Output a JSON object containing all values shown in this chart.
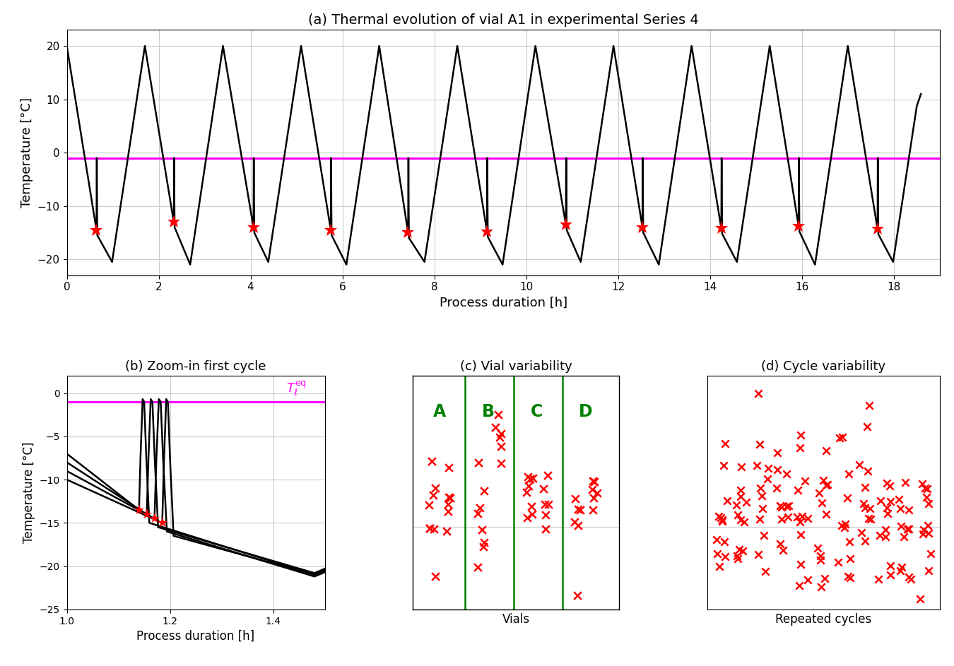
{
  "title_a": "(a) Thermal evolution of vial A1 in experimental Series 4",
  "title_b": "(b) Zoom-in first cycle",
  "title_c": "(c) Vial variability",
  "title_d": "(d) Cycle variability",
  "xlabel_a": "Process duration [h]",
  "ylabel_a": "Temperature [°C]",
  "xlabel_b": "Process duration [h]",
  "ylabel_b": "Temperature [°C]",
  "xlabel_c": "Vials",
  "xlabel_d": "Repeated cycles",
  "magenta_color": "#FF00FF",
  "red_color": "#FF0000",
  "green_color": "#008000",
  "black_color": "#000000",
  "bg_color": "#FFFFFF",
  "grid_color": "#CCCCCC",
  "num_cycles": 11,
  "cycle_period": 1.7,
  "ylim_a": [
    -23,
    23
  ],
  "ylim_b": [
    -25,
    2
  ],
  "xlim_a": [
    0,
    19
  ],
  "xlim_b": [
    1.0,
    1.5
  ],
  "T_high": 20,
  "T_low_min": -20,
  "T_low_max": -21,
  "T_eq": -1.0,
  "nucl_temps": [
    -14.5,
    -13.0,
    -14.0,
    -14.5,
    -15.0,
    -14.8,
    -13.5,
    -14.0,
    -14.2,
    -13.8,
    -14.3
  ],
  "nucl_fracs": [
    0.38,
    0.37,
    0.39,
    0.38,
    0.37,
    0.38,
    0.39,
    0.37,
    0.38,
    0.37,
    0.38
  ]
}
